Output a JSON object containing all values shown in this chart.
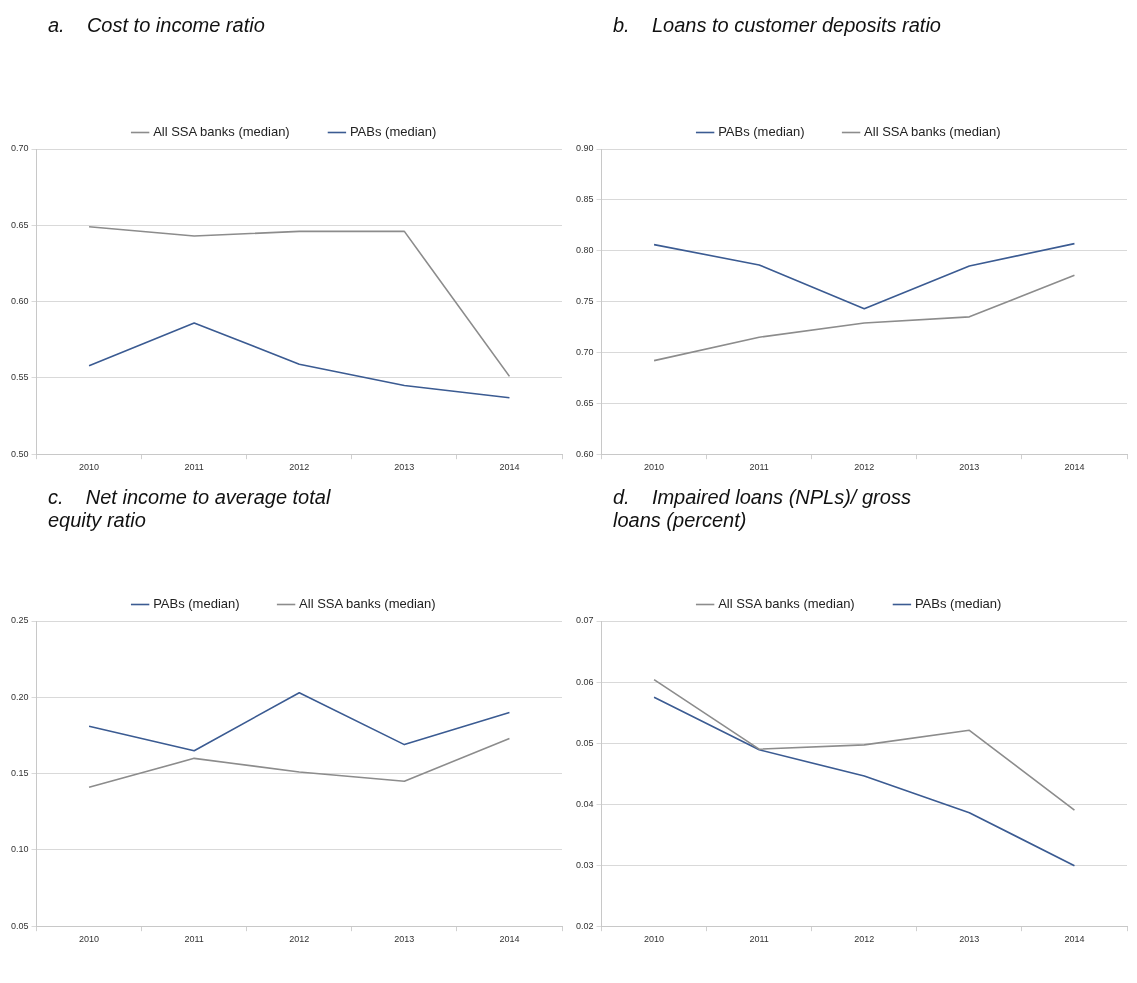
{
  "chart_data": [
    {
      "type": "line",
      "title": "a.    Cost to income ratio",
      "categories": [
        "2010",
        "2011",
        "2012",
        "2013",
        "2014"
      ],
      "series": [
        {
          "name": "All SSA banks (median)",
          "color": "#8c8c8c",
          "values": [
            0.649,
            0.643,
            0.646,
            0.646,
            0.551
          ]
        },
        {
          "name": "PABs (median)",
          "color": "#3b5b92",
          "values": [
            0.558,
            0.586,
            0.559,
            0.545,
            0.537
          ]
        }
      ],
      "ylim": [
        0.5,
        0.7
      ],
      "yticks": [
        {
          "value": 0.5,
          "label": "0.50"
        },
        0.55,
        {
          "value": 0.6,
          "label": "0.60"
        },
        0.65,
        {
          "value": 0.7,
          "label": "0.70"
        }
      ],
      "grid": "y",
      "legend": "top",
      "marker": "none",
      "line_style": "solid"
    },
    {
      "type": "line",
      "title": "b.    Loans to customer deposits ratio",
      "categories": [
        "2010",
        "2011",
        "2012",
        "2013",
        "2014"
      ],
      "series": [
        {
          "name": "PABs (median)",
          "color": "#3b5b92",
          "values": [
            0.806,
            0.786,
            0.743,
            0.785,
            0.807
          ]
        },
        {
          "name": "All SSA banks (median)",
          "color": "#8c8c8c",
          "values": [
            0.692,
            0.715,
            0.729,
            0.735,
            0.776
          ]
        }
      ],
      "ylim": [
        0.6,
        0.9
      ],
      "yticks": [
        {
          "value": 0.6,
          "label": "0.60"
        },
        0.65,
        {
          "value": 0.7,
          "label": "0.70"
        },
        0.75,
        {
          "value": 0.8,
          "label": "0.80"
        },
        0.85,
        {
          "value": 0.9,
          "label": "0.90"
        }
      ],
      "grid": "y",
      "legend": "top",
      "marker": "none",
      "line_style": "solid"
    },
    {
      "type": "line",
      "title": "c.    Net income to average total equity ratio",
      "categories": [
        "2010",
        "2011",
        "2012",
        "2013",
        "2014"
      ],
      "series": [
        {
          "name": "PABs (median)",
          "color": "#3b5b92",
          "values": [
            0.181,
            0.165,
            0.203,
            0.169,
            0.19
          ]
        },
        {
          "name": "All SSA banks (median)",
          "color": "#8c8c8c",
          "values": [
            0.141,
            0.16,
            0.151,
            0.145,
            0.173
          ]
        }
      ],
      "ylim": [
        0.05,
        0.25
      ],
      "yticks": [
        0.05,
        {
          "value": 0.1,
          "label": "0.10"
        },
        0.15,
        {
          "value": 0.2,
          "label": "0.20"
        },
        0.25
      ],
      "grid": "y",
      "legend": "top",
      "marker": "none",
      "line_style": "solid"
    },
    {
      "type": "line",
      "title": "d.    Impaired loans (NPLs)/ gross loans (percent)",
      "categories": [
        "2010",
        "2011",
        "2012",
        "2013",
        "2014"
      ],
      "series": [
        {
          "name": "All SSA banks (median)",
          "color": "#8c8c8c",
          "values": [
            0.0604,
            0.049,
            0.0497,
            0.0521,
            0.039
          ]
        },
        {
          "name": "PABs (median)",
          "color": "#3b5b92",
          "values": [
            0.0575,
            0.0489,
            0.0446,
            0.0386,
            0.0299
          ]
        }
      ],
      "ylim": [
        0.02,
        0.07
      ],
      "yticks": [
        {
          "value": 0.02,
          "label": "0.02"
        },
        {
          "value": 0.03,
          "label": "0.03"
        },
        {
          "value": 0.04,
          "label": "0.04"
        },
        {
          "value": 0.05,
          "label": "0.05"
        },
        {
          "value": 0.06,
          "label": "0.06"
        },
        {
          "value": 0.07,
          "label": "0.07"
        }
      ],
      "grid": "y",
      "legend": "top",
      "marker": "none",
      "line_style": "solid"
    }
  ]
}
